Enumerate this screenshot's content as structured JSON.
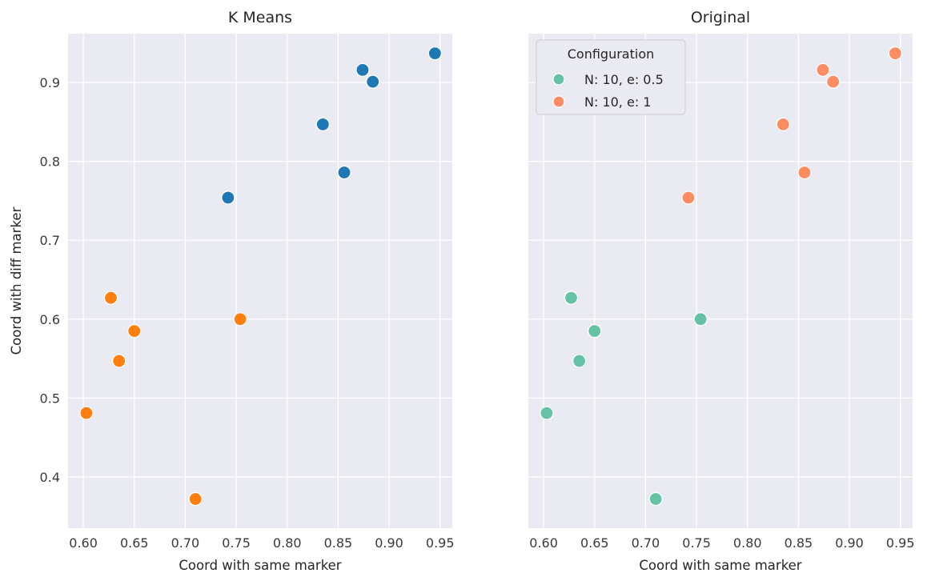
{
  "chart_data": [
    {
      "type": "scatter",
      "title": "K Means",
      "xlabel": "Coord with same marker",
      "ylabel": "Coord with diff marker",
      "xlim": [
        0.585,
        0.962
      ],
      "ylim": [
        0.335,
        0.962
      ],
      "xticks": [
        "0.60",
        "0.65",
        "0.70",
        "0.75",
        "0.80",
        "0.85",
        "0.90",
        "0.95"
      ],
      "yticks": [
        "0.4",
        "0.5",
        "0.6",
        "0.7",
        "0.8",
        "0.9"
      ],
      "grid": true,
      "series": [
        {
          "color": "#1f77b4",
          "points": [
            {
              "x": 0.945,
              "y": 0.937
            },
            {
              "x": 0.874,
              "y": 0.916
            },
            {
              "x": 0.884,
              "y": 0.901
            },
            {
              "x": 0.835,
              "y": 0.847
            },
            {
              "x": 0.856,
              "y": 0.786
            },
            {
              "x": 0.742,
              "y": 0.754
            }
          ]
        },
        {
          "color": "#ff7f0e",
          "points": [
            {
              "x": 0.627,
              "y": 0.627
            },
            {
              "x": 0.754,
              "y": 0.6
            },
            {
              "x": 0.65,
              "y": 0.585
            },
            {
              "x": 0.635,
              "y": 0.547
            },
            {
              "x": 0.603,
              "y": 0.481
            },
            {
              "x": 0.71,
              "y": 0.372
            }
          ]
        }
      ]
    },
    {
      "type": "scatter",
      "title": "Original",
      "xlabel": "Coord with same marker",
      "ylabel": "",
      "xlim": [
        0.585,
        0.962
      ],
      "ylim": [
        0.335,
        0.962
      ],
      "xticks": [
        "0.60",
        "0.65",
        "0.70",
        "0.75",
        "0.80",
        "0.85",
        "0.90",
        "0.95"
      ],
      "yticks": [],
      "grid": true,
      "legend": {
        "title": "Configuration",
        "placement": "top-left"
      },
      "series": [
        {
          "name": "N: 10, e: 0.5",
          "color": "#66c2a5",
          "points": [
            {
              "x": 0.627,
              "y": 0.627
            },
            {
              "x": 0.754,
              "y": 0.6
            },
            {
              "x": 0.65,
              "y": 0.585
            },
            {
              "x": 0.635,
              "y": 0.547
            },
            {
              "x": 0.603,
              "y": 0.481
            },
            {
              "x": 0.71,
              "y": 0.372
            }
          ]
        },
        {
          "name": "N: 10, e: 1",
          "color": "#fc8d62",
          "points": [
            {
              "x": 0.945,
              "y": 0.937
            },
            {
              "x": 0.874,
              "y": 0.916
            },
            {
              "x": 0.884,
              "y": 0.901
            },
            {
              "x": 0.835,
              "y": 0.847
            },
            {
              "x": 0.856,
              "y": 0.786
            },
            {
              "x": 0.742,
              "y": 0.754
            }
          ]
        }
      ]
    }
  ]
}
